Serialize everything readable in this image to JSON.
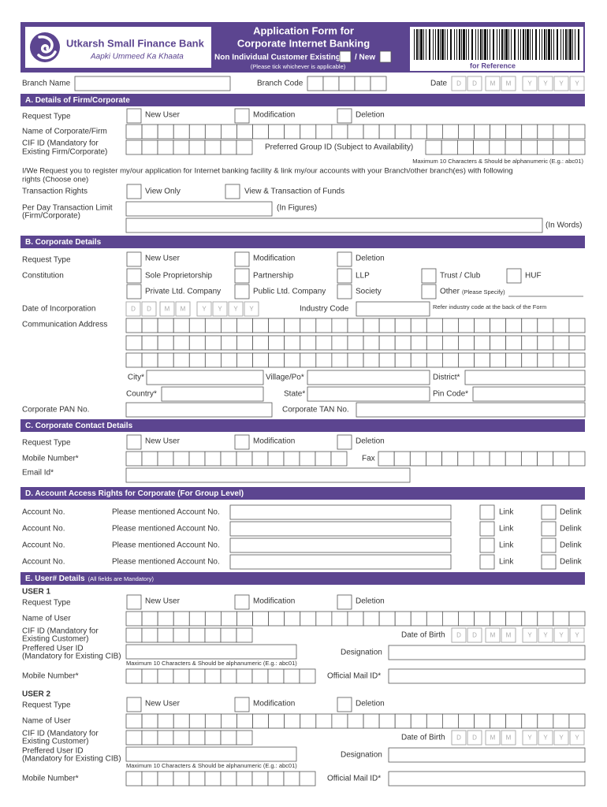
{
  "header": {
    "bank_name": "Utkarsh Small Finance Bank",
    "tagline": "Aapki Ummeed Ka Khaata",
    "title": [
      "Application Form for",
      "Corporate Internet Banking"
    ],
    "customer_existing": "Non Individual Customer Existing",
    "customer_new": "/ New",
    "tick_note": "(Please tick whichever is applicable)",
    "reference": "for Reference"
  },
  "branch": {
    "branch_name": "Branch Name",
    "branch_code": "Branch Code",
    "date": "Date",
    "date_cells": [
      "D",
      "D",
      "M",
      "M",
      "Y",
      "Y",
      "Y",
      "Y"
    ]
  },
  "section_a": {
    "heading": "A. Details of Firm/Corporate",
    "request_type": "Request Type",
    "request_options": [
      "New User",
      "Modification",
      "Deletion"
    ],
    "name": "Name of Corporate/Firm",
    "cif": [
      "CIF ID (Mandatory for",
      "Existing Firm/Corporate)"
    ],
    "group_id": "Preferred Group ID (Subject to Availability)",
    "group_id_note": "Maximum 10 Characters & Should be alphanumeric (E.g.: abc01)",
    "request_text": [
      "I/We Request you to register my/our application for Internet banking facility & link my/our accounts with your Branch/other branch(es) with following",
      "rights (Choose one)"
    ],
    "transaction_rights": "Transaction Rights",
    "rights_options": [
      "View Only",
      "View & Transaction of Funds"
    ],
    "limit": [
      "Per Day Transaction Limit",
      "(Firm/Corporate)"
    ],
    "in_figures": "(In Figures)",
    "in_words": "(In Words)"
  },
  "section_b": {
    "heading": "B. Corporate Details",
    "request_type": "Request Type",
    "request_options": [
      "New User",
      "Modification",
      "Deletion"
    ],
    "constitution": "Constitution",
    "constitution_options": [
      "Sole Proprietorship",
      "Partnership",
      "LLP",
      "Trust / Club",
      "HUF",
      "Private Ltd. Company",
      "Public Ltd. Company",
      "Society",
      "Other"
    ],
    "specify": "(Please Specify)",
    "incorporation_date": "Date of Incorporation",
    "date_cells": [
      "D",
      "D",
      "M",
      "M",
      "Y",
      "Y",
      "Y",
      "Y"
    ],
    "industry_code": "Industry Code",
    "industry_note": "Refer industry code at the back of the Form",
    "address": "Communication Address",
    "city": "City*",
    "village": "Village/Po*",
    "district": "District*",
    "country": "Country*",
    "state": "State*",
    "pin": "Pin Code*",
    "pan": "Corporate PAN No.",
    "tan": "Corporate TAN No."
  },
  "section_c": {
    "heading": "C. Corporate Contact Details",
    "request_type": "Request Type",
    "request_options": [
      "New User",
      "Modification",
      "Deletion"
    ],
    "mobile": "Mobile Number*",
    "fax": "Fax",
    "email": "Email Id*"
  },
  "section_d": {
    "heading": "D. Account Access Rights for Corporate (For Group Level)",
    "rows": [
      {
        "label": "Account No.",
        "prompt": "Please mentioned Account No.",
        "link": "Link",
        "delink": "Delink"
      },
      {
        "label": "Account No.",
        "prompt": "Please mentioned Account No.",
        "link": "Link",
        "delink": "Delink"
      },
      {
        "label": "Account No.",
        "prompt": "Please mentioned Account No.",
        "link": "Link",
        "delink": "Delink"
      },
      {
        "label": "Account No.",
        "prompt": "Please mentioned Account No.",
        "link": "Link",
        "delink": "Delink"
      }
    ]
  },
  "section_e": {
    "heading": "E. User# Details",
    "heading_note": "(All fields are Mandatory)",
    "users": [
      {
        "title": "USER 1",
        "request_type": "Request Type",
        "request_options": [
          "New User",
          "Modification",
          "Deletion"
        ],
        "name": "Name of User",
        "cif": [
          "CIF ID (Mandatory for",
          "Existing Customer)"
        ],
        "dob": "Date of Birth",
        "date_cells": [
          "D",
          "D",
          "M",
          "M",
          "Y",
          "Y",
          "Y",
          "Y"
        ],
        "user_id": [
          "Preffered User ID",
          "(Mandatory for Existing CIB)"
        ],
        "designation": "Designation",
        "user_id_note": "Maximum 10 Characters & Should be alphanumeric (E.g.: abc01)",
        "mobile": "Mobile Number*",
        "mail": "Official Mail ID*"
      },
      {
        "title": "USER 2",
        "request_type": "Request Type",
        "request_options": [
          "New User",
          "Modification",
          "Deletion"
        ],
        "name": "Name of User",
        "cif": [
          "CIF ID (Mandatory for",
          "Existing Customer)"
        ],
        "dob": "Date of Birth",
        "date_cells": [
          "D",
          "D",
          "M",
          "M",
          "Y",
          "Y",
          "Y",
          "Y"
        ],
        "user_id": [
          "Preffered User ID",
          "(Mandatory for Existing CIB)"
        ],
        "designation": "Designation",
        "user_id_note": "Maximum 10 Characters & Should be alphanumeric (E.g.: abc01)",
        "mobile": "Mobile Number*",
        "mail": "Official Mail ID*"
      }
    ]
  }
}
